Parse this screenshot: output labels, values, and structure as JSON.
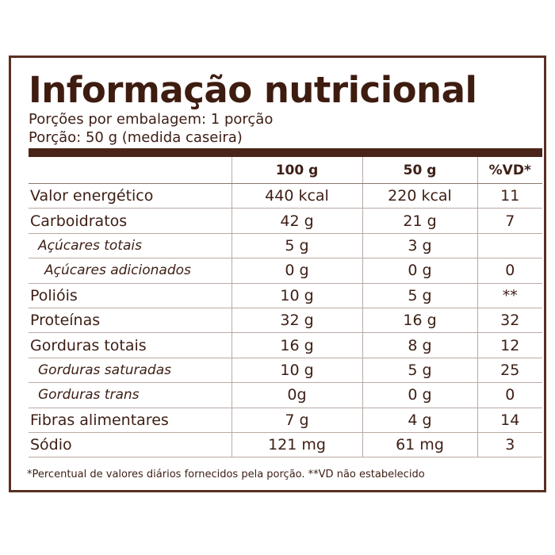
{
  "title": "Informação nutricional",
  "servings_per_package": "Porções por embalagem: 1 porção",
  "serving_size": "Porção: 50 g (medida caseira)",
  "table": {
    "header": [
      "100 g",
      "50 g",
      "%VD*"
    ],
    "rows": [
      [
        "Valor energético",
        "440 kcal",
        "220 kcal",
        "11"
      ],
      [
        "Carboidratos",
        "42 g",
        "21 g",
        "7"
      ],
      [
        "Açúcares totais",
        "5 g",
        "3 g"
      ],
      [
        "Açúcares adicionados",
        "0 g",
        "0 g",
        "0"
      ],
      [
        "Polióis",
        "10 g",
        "5 g",
        "**"
      ],
      [
        "Proteínas",
        "32 g",
        "16 g",
        "32"
      ],
      [
        "Gorduras totais",
        "16 g",
        "8 g",
        "12"
      ],
      [
        "Gorduras saturadas",
        "10 g",
        "5 g",
        "25"
      ],
      [
        "Gorduras trans",
        "0g",
        "0 g",
        "0"
      ],
      [
        "Fibras alimentares",
        "7 g",
        "4 g",
        "14"
      ],
      [
        "Sódio",
        "121 mg",
        "61 mg",
        "3"
      ]
    ]
  },
  "footnote": "*Percentual de valores diários fornecidos pela porção. **VD não estabelecido"
}
